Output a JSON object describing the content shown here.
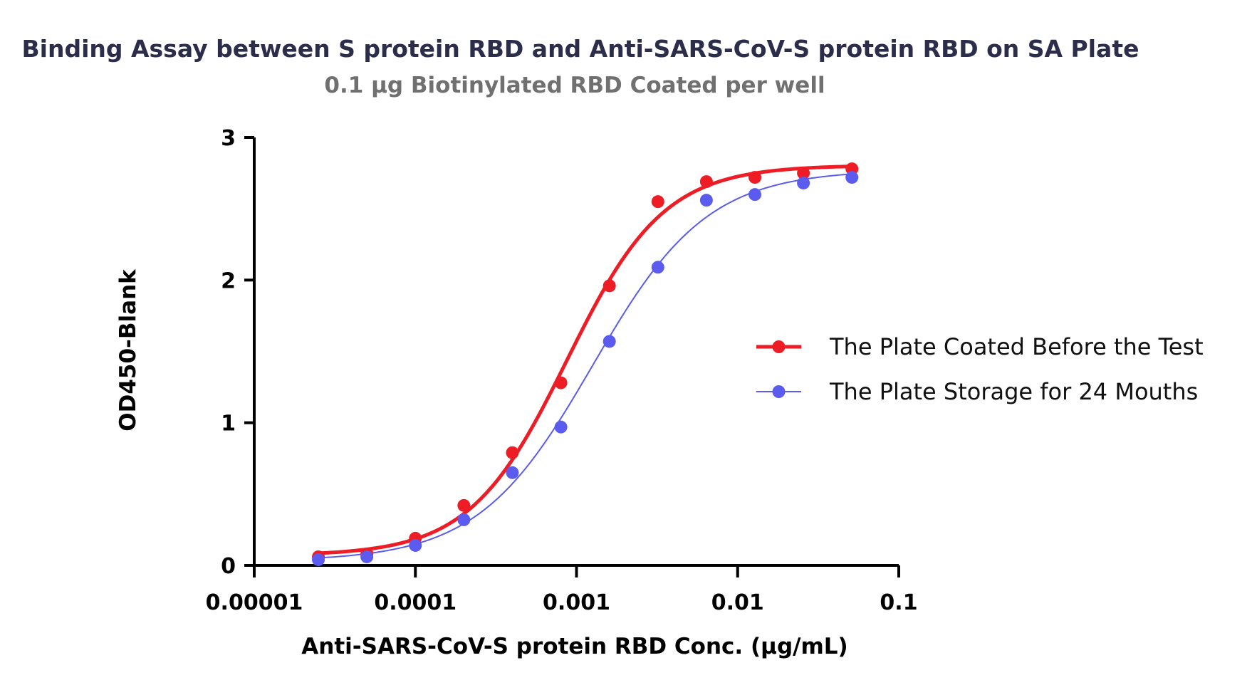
{
  "chart_data": {
    "type": "scatter",
    "title": "Binding Assay  between  S protein RBD  and  Anti-SARS-CoV-S protein RBD  on SA Plate",
    "subtitle": "0.1 µg Biotinylated RBD Coated per well",
    "xlabel": "Anti-SARS-CoV-S protein RBD  Conc. (µg/mL)",
    "ylabel": "OD450-Blank",
    "x_scale": "log",
    "xlim": [
      1e-05,
      0.1
    ],
    "ylim": [
      0,
      3
    ],
    "x_ticks": [
      "0.00001",
      "0.0001",
      "0.001",
      "0.01",
      "0.1"
    ],
    "y_ticks": [
      "0",
      "1",
      "2",
      "3"
    ],
    "x": [
      2.5e-05,
      5e-05,
      0.0001,
      0.0002,
      0.0004,
      0.0008,
      0.0016,
      0.0032,
      0.0064,
      0.0128,
      0.0256,
      0.0512
    ],
    "series": [
      {
        "name": "The Plate Coated Before the Test",
        "color": "#ee1c25",
        "values": [
          0.06,
          0.08,
          0.19,
          0.42,
          0.79,
          1.28,
          1.96,
          2.55,
          2.69,
          2.72,
          2.75,
          2.78
        ],
        "fit_curve": true
      },
      {
        "name": "The Plate Storage for 24 Mouths",
        "color": "#5b5bef",
        "values": [
          0.04,
          0.06,
          0.14,
          0.32,
          0.65,
          0.97,
          1.57,
          2.09,
          2.56,
          2.6,
          2.68,
          2.72
        ],
        "fit_curve": true
      }
    ],
    "legend_position": "right",
    "grid": false
  }
}
